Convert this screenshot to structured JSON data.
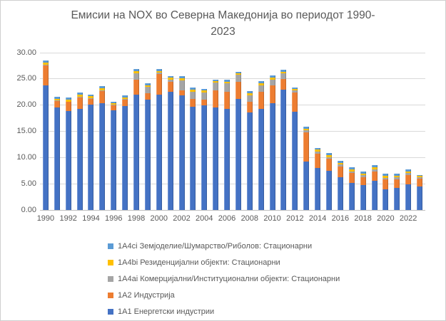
{
  "title": {
    "line1": "Емисии на NOX во Северна Македонија во периодот 1990-",
    "line2": "2023",
    "full": "Емисии на NOX во Северна Македонија во периодот 1990-2023"
  },
  "colors": {
    "series_1A1": "#4472C4",
    "series_1A2": "#ED7D31",
    "series_1A4ai": "#A5A5A5",
    "series_1A4bi": "#FFC000",
    "series_1A4ci": "#5B9BD5",
    "gridline": "#d9d9d9",
    "text": "#595959",
    "background": "#ffffff"
  },
  "chart_data": {
    "type": "bar",
    "stacked": true,
    "title": "Емисии на NOX во Северна Македонија во периодот 1990-2023",
    "xlabel": "",
    "ylabel": "",
    "ylim": [
      0,
      30
    ],
    "grid": true,
    "legend_position": "bottom-left",
    "y_tick_labels": [
      "0.00",
      "5.00",
      "10.00",
      "15.00",
      "20.00",
      "25.00",
      "30.00"
    ],
    "x_tick_labels": [
      "1990",
      "1992",
      "1994",
      "1996",
      "1998",
      "2000",
      "2002",
      "2004",
      "2006",
      "2008",
      "2010",
      "2012",
      "2014",
      "2016",
      "2018",
      "2020",
      "2022"
    ],
    "categories": [
      1990,
      1991,
      1992,
      1993,
      1994,
      1995,
      1996,
      1997,
      1998,
      1999,
      2000,
      2001,
      2002,
      2003,
      2004,
      2005,
      2006,
      2007,
      2008,
      2009,
      2010,
      2011,
      2012,
      2013,
      2014,
      2015,
      2016,
      2017,
      2018,
      2019,
      2020,
      2021,
      2022,
      2023
    ],
    "series": [
      {
        "name": "1A1 Енергетски индустрии",
        "color": "#4472C4",
        "values": [
          23.7,
          19.5,
          18.9,
          19.3,
          20.1,
          20.3,
          19.0,
          19.8,
          22.0,
          21.0,
          22.0,
          22.5,
          21.8,
          19.7,
          19.9,
          19.5,
          19.3,
          21.2,
          18.6,
          19.3,
          20.4,
          23.0,
          18.7,
          9.2,
          8.0,
          7.5,
          6.3,
          5.2,
          4.7,
          5.5,
          4.0,
          4.2,
          4.9,
          4.5
        ]
      },
      {
        "name": "1A2 Индустрија",
        "color": "#ED7D31",
        "values": [
          3.9,
          1.3,
          1.7,
          2.2,
          1.1,
          2.4,
          1.0,
          1.3,
          2.9,
          1.2,
          3.9,
          1.9,
          1.0,
          1.5,
          1.2,
          3.3,
          3.2,
          3.3,
          2.1,
          3.3,
          3.3,
          2.0,
          3.7,
          5.6,
          2.7,
          2.3,
          2.0,
          1.9,
          1.6,
          1.9,
          1.8,
          1.7,
          1.8,
          1.5
        ]
      },
      {
        "name": "1A4ai Комерцијални/Институционални објекти: Стационарни",
        "color": "#A5A5A5",
        "values": [
          0.1,
          0.1,
          0.1,
          0.1,
          0.1,
          0.1,
          0.1,
          0.1,
          1.2,
          1.3,
          0.3,
          0.4,
          1.9,
          1.3,
          1.3,
          1.5,
          1.6,
          1.3,
          1.2,
          1.2,
          1.2,
          1.0,
          0.4,
          0.4,
          0.4,
          0.3,
          0.4,
          0.3,
          0.3,
          0.4,
          0.3,
          0.3,
          0.3,
          0.2
        ]
      },
      {
        "name": "1A4bi Резиденцијални објекти: Стационарни",
        "color": "#FFC000",
        "values": [
          0.4,
          0.3,
          0.3,
          0.4,
          0.4,
          0.4,
          0.3,
          0.3,
          0.4,
          0.3,
          0.3,
          0.4,
          0.4,
          0.4,
          0.4,
          0.3,
          0.4,
          0.3,
          0.4,
          0.4,
          0.4,
          0.4,
          0.3,
          0.3,
          0.4,
          0.3,
          0.3,
          0.3,
          0.3,
          0.3,
          0.4,
          0.3,
          0.3,
          0.3
        ]
      },
      {
        "name": "1A4ci Земјоделие/Шумарство/Риболов: Стационарни",
        "color": "#5B9BD5",
        "values": [
          0.4,
          0.4,
          0.4,
          0.4,
          0.3,
          0.4,
          0.3,
          0.4,
          0.4,
          0.4,
          0.4,
          0.3,
          0.4,
          0.4,
          0.3,
          0.3,
          0.4,
          0.3,
          0.4,
          0.4,
          0.3,
          0.4,
          0.3,
          0.4,
          0.3,
          0.4,
          0.4,
          0.4,
          0.4,
          0.4,
          0.4,
          0.4,
          0.4,
          0.2
        ]
      }
    ],
    "legend_order_top_to_bottom": [
      "1A4ci Земјоделие/Шумарство/Риболов: Стационарни",
      "1A4bi Резиденцијални објекти: Стационарни",
      "1A4ai Комерцијални/Институционални објекти: Стационарни",
      "1A2 Индустрија",
      "1A1 Енергетски индустрии"
    ]
  }
}
